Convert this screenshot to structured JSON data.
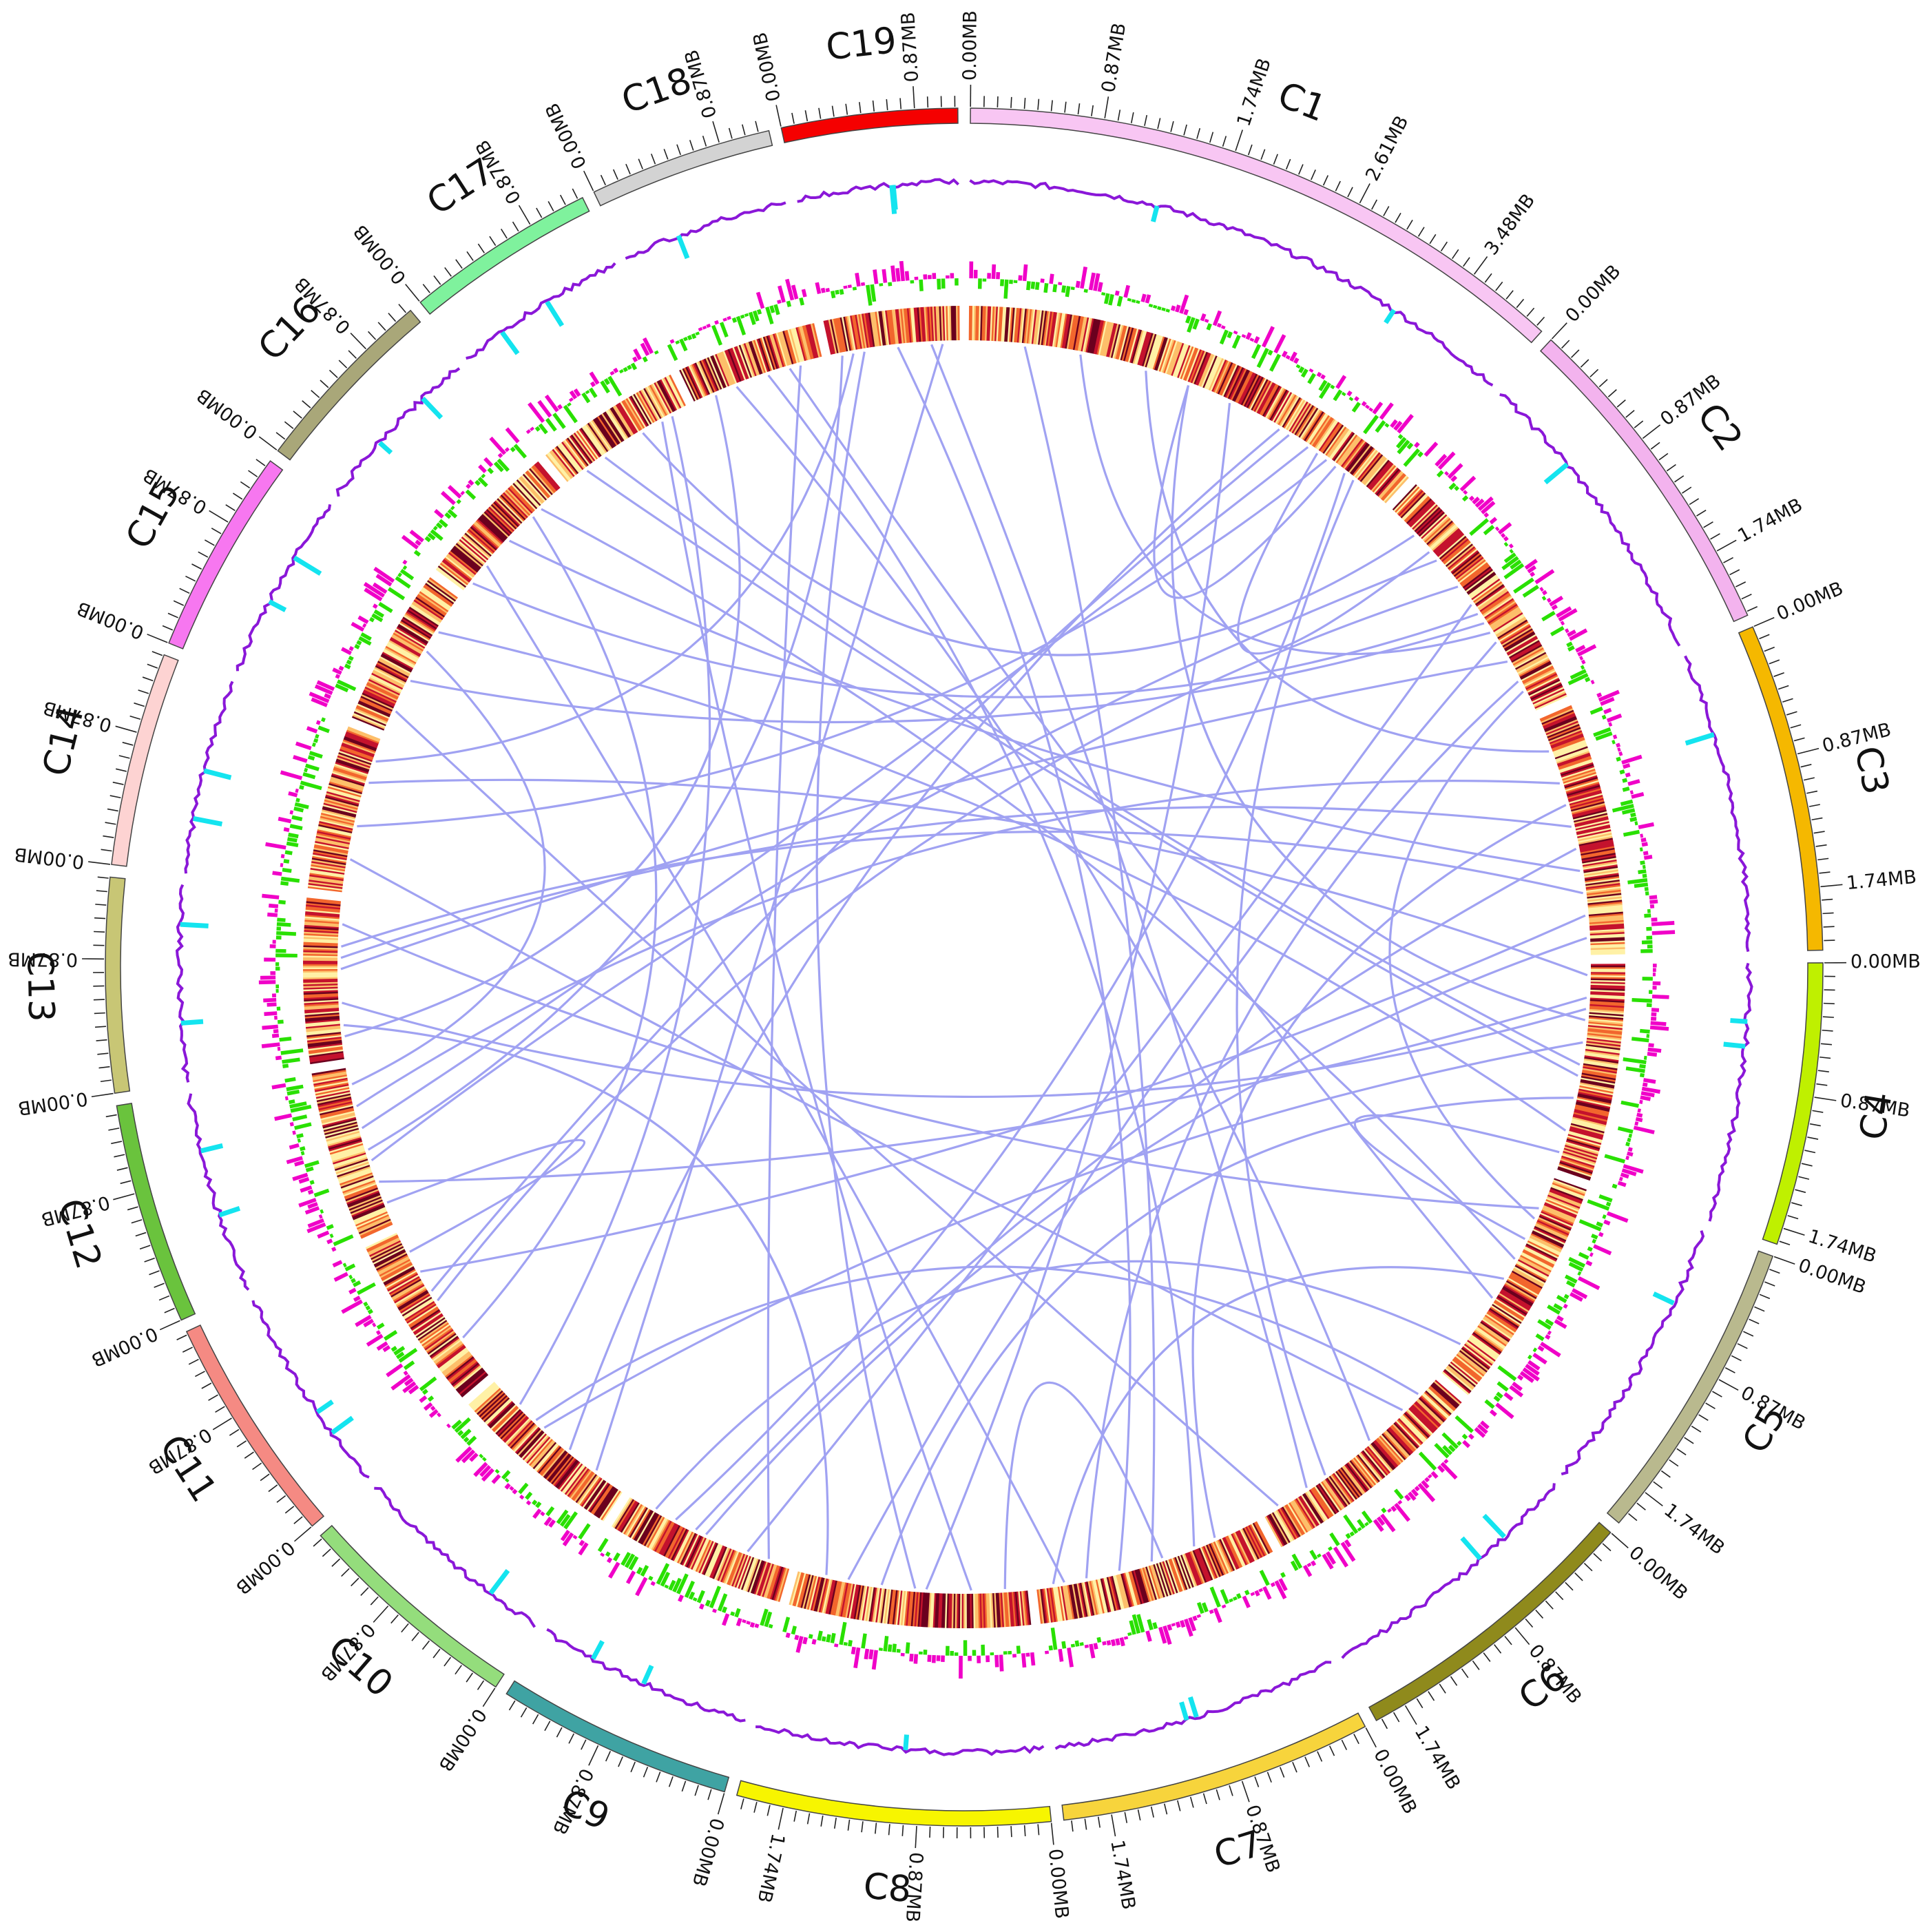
{
  "chart_data": {
    "type": "circos",
    "unit_label_format": "MB",
    "chromosomes": [
      {
        "name": "C1",
        "length_mb": 4.05,
        "color": "#f8c6f3",
        "tick_labels": [
          "0.00MB",
          "0.87MB",
          "1.74MB",
          "2.61MB",
          "3.48MB"
        ]
      },
      {
        "name": "C2",
        "length_mb": 2.2,
        "color": "#f3b3ee",
        "tick_labels": [
          "0.00MB",
          "0.87MB",
          "1.74MB"
        ]
      },
      {
        "name": "C3",
        "length_mb": 2.15,
        "color": "#f5b800",
        "tick_labels": [
          "0.00MB",
          "0.87MB",
          "1.74MB"
        ]
      },
      {
        "name": "C4",
        "length_mb": 1.85,
        "color": "#bff000",
        "tick_labels": [
          "0.00MB",
          "0.87MB",
          "1.74MB"
        ]
      },
      {
        "name": "C5",
        "length_mb": 2.0,
        "color": "#b9b98e",
        "tick_labels": [
          "0.00MB",
          "0.87MB",
          "1.74MB"
        ]
      },
      {
        "name": "C6",
        "length_mb": 1.95,
        "color": "#8f8a1c",
        "tick_labels": [
          "0.00MB",
          "0.87MB",
          "1.74MB"
        ]
      },
      {
        "name": "C7",
        "length_mb": 2.05,
        "color": "#f7d43c",
        "tick_labels": [
          "0.00MB",
          "0.87MB",
          "1.74MB"
        ]
      },
      {
        "name": "C8",
        "length_mb": 2.05,
        "color": "#f7f500",
        "tick_labels": [
          "0.00MB",
          "0.87MB",
          "1.74MB"
        ]
      },
      {
        "name": "C9",
        "length_mb": 1.55,
        "color": "#3fa3a3",
        "tick_labels": [
          "0.00MB",
          "0.87MB"
        ]
      },
      {
        "name": "C10",
        "length_mb": 1.5,
        "color": "#94dd7c",
        "tick_labels": [
          "0.00MB",
          "0.87MB"
        ]
      },
      {
        "name": "C11",
        "length_mb": 1.5,
        "color": "#f58a83",
        "tick_labels": [
          "0.00MB",
          "0.87MB"
        ]
      },
      {
        "name": "C12",
        "length_mb": 1.45,
        "color": "#6ac33d",
        "tick_labels": [
          "0.00MB",
          "0.87MB"
        ]
      },
      {
        "name": "C13",
        "length_mb": 1.4,
        "color": "#c8c675",
        "tick_labels": [
          "0.00MB",
          "0.87MB"
        ]
      },
      {
        "name": "C14",
        "length_mb": 1.4,
        "color": "#fdd3d2",
        "tick_labels": [
          "0.00MB",
          "0.87MB"
        ]
      },
      {
        "name": "C15",
        "length_mb": 1.35,
        "color": "#f777f0",
        "tick_labels": [
          "0.00MB",
          "0.87MB"
        ]
      },
      {
        "name": "C16",
        "length_mb": 1.25,
        "color": "#a9a779",
        "tick_labels": [
          "0.00MB",
          "0.87MB"
        ]
      },
      {
        "name": "C17",
        "length_mb": 1.25,
        "color": "#7ff29d",
        "tick_labels": [
          "0.00MB",
          "0.87MB"
        ]
      },
      {
        "name": "C18",
        "length_mb": 1.2,
        "color": "#d3d3d3",
        "tick_labels": [
          "0.00MB",
          "0.87MB"
        ]
      },
      {
        "name": "C19",
        "length_mb": 1.15,
        "color": "#f50000",
        "tick_labels": [
          "0.00MB",
          "0.87MB"
        ]
      }
    ],
    "tracks": [
      {
        "kind": "line-histogram",
        "colors": [
          "#8a17d8",
          "#14e4ef"
        ]
      },
      {
        "kind": "bar-histogram",
        "colors": [
          "#f000c8",
          "#29e000"
        ]
      },
      {
        "kind": "heatmap",
        "colors": [
          "#fff1a6",
          "#fdbf6a",
          "#f2662d",
          "#c4122d",
          "#6b001e"
        ]
      }
    ],
    "links": {
      "color": "#a0a2f2",
      "pairs": [
        [
          [
            "C1",
            1.0
          ],
          [
            "C2",
            1.4
          ]
        ],
        [
          [
            "C1",
            1.6
          ],
          [
            "C3",
            0.3
          ]
        ],
        [
          [
            "C1",
            2.0
          ],
          [
            "C4",
            0.5
          ]
        ],
        [
          [
            "C1",
            2.4
          ],
          [
            "C8",
            0.9
          ]
        ],
        [
          [
            "C1",
            2.9
          ],
          [
            "C10",
            0.6
          ]
        ],
        [
          [
            "C1",
            3.2
          ],
          [
            "C12",
            0.9
          ]
        ],
        [
          [
            "C1",
            3.4
          ],
          [
            "C14",
            0.6
          ]
        ],
        [
          [
            "C1",
            3.6
          ],
          [
            "C9",
            1.1
          ]
        ],
        [
          [
            "C1",
            3.7
          ],
          [
            "C6",
            1.3
          ]
        ],
        [
          [
            "C1",
            0.5
          ],
          [
            "C7",
            1.0
          ]
        ],
        [
          [
            "C1",
            3.3
          ],
          [
            "C2",
            0.5
          ]
        ],
        [
          [
            "C1",
            3.5
          ],
          [
            "C1",
            2.0
          ]
        ],
        [
          [
            "C2",
            0.6
          ],
          [
            "C12",
            0.6
          ]
        ],
        [
          [
            "C2",
            0.9
          ],
          [
            "C11",
            0.8
          ]
        ],
        [
          [
            "C2",
            1.1
          ],
          [
            "C9",
            0.4
          ]
        ],
        [
          [
            "C2",
            1.3
          ],
          [
            "C15",
            0.5
          ]
        ],
        [
          [
            "C2",
            1.7
          ],
          [
            "C13",
            0.8
          ]
        ],
        [
          [
            "C2",
            1.9
          ],
          [
            "C7",
            1.6
          ]
        ],
        [
          [
            "C2",
            0.3
          ],
          [
            "C17",
            0.8
          ]
        ],
        [
          [
            "C2",
            1.5
          ],
          [
            "C8",
            1.6
          ]
        ],
        [
          [
            "C2",
            2.0
          ],
          [
            "C5",
            0.4
          ]
        ],
        [
          [
            "C3",
            0.6
          ],
          [
            "C12",
            1.1
          ]
        ],
        [
          [
            "C3",
            1.0
          ],
          [
            "C13",
            0.9
          ]
        ],
        [
          [
            "C3",
            1.4
          ],
          [
            "C16",
            0.6
          ]
        ],
        [
          [
            "C3",
            1.8
          ],
          [
            "C11",
            1.1
          ]
        ],
        [
          [
            "C3",
            2.0
          ],
          [
            "C9",
            0.8
          ]
        ],
        [
          [
            "C3",
            0.8
          ],
          [
            "C7",
            0.4
          ]
        ],
        [
          [
            "C4",
            0.1
          ],
          [
            "C14",
            1.0
          ]
        ],
        [
          [
            "C4",
            0.3
          ],
          [
            "C12",
            0.4
          ]
        ],
        [
          [
            "C4",
            0.4
          ],
          [
            "C13",
            0.5
          ]
        ],
        [
          [
            "C4",
            0.7
          ],
          [
            "C10",
            0.9
          ]
        ],
        [
          [
            "C4",
            0.9
          ],
          [
            "C17",
            0.4
          ]
        ],
        [
          [
            "C4",
            1.2
          ],
          [
            "C8",
            1.3
          ]
        ],
        [
          [
            "C4",
            1.5
          ],
          [
            "C15",
            1.0
          ]
        ],
        [
          [
            "C4",
            1.7
          ],
          [
            "C5",
            0.6
          ]
        ],
        [
          [
            "C5",
            0.3
          ],
          [
            "C13",
            1.2
          ]
        ],
        [
          [
            "C5",
            0.8
          ],
          [
            "C16",
            1.0
          ]
        ],
        [
          [
            "C5",
            1.2
          ],
          [
            "C18",
            0.9
          ]
        ],
        [
          [
            "C5",
            1.7
          ],
          [
            "C9",
            1.3
          ]
        ],
        [
          [
            "C6",
            0.4
          ],
          [
            "C14",
            0.3
          ]
        ],
        [
          [
            "C6",
            0.8
          ],
          [
            "C18",
            0.4
          ]
        ],
        [
          [
            "C6",
            1.5
          ],
          [
            "C19",
            0.9
          ]
        ],
        [
          [
            "C6",
            1.8
          ],
          [
            "C15",
            0.2
          ]
        ],
        [
          [
            "C7",
            0.6
          ],
          [
            "C18",
            0.7
          ]
        ],
        [
          [
            "C7",
            1.3
          ],
          [
            "C19",
            0.6
          ]
        ],
        [
          [
            "C7",
            1.8
          ],
          [
            "C16",
            0.3
          ]
        ],
        [
          [
            "C7",
            0.9
          ],
          [
            "C8",
            0.2
          ]
        ],
        [
          [
            "C8",
            0.5
          ],
          [
            "C17",
            1.0
          ]
        ],
        [
          [
            "C8",
            1.0
          ],
          [
            "C19",
            0.3
          ]
        ],
        [
          [
            "C8",
            1.8
          ],
          [
            "C13",
            0.3
          ]
        ],
        [
          [
            "C9",
            0.2
          ],
          [
            "C18",
            1.0
          ]
        ],
        [
          [
            "C10",
            0.3
          ],
          [
            "C19",
            1.0
          ]
        ],
        [
          [
            "C10",
            1.2
          ],
          [
            "C17",
            1.1
          ]
        ],
        [
          [
            "C11",
            0.4
          ],
          [
            "C16",
            0.9
          ]
        ],
        [
          [
            "C11",
            1.3
          ],
          [
            "C12",
            0.2
          ]
        ],
        [
          [
            "C12",
            1.3
          ],
          [
            "C15",
            0.8
          ]
        ],
        [
          [
            "C13",
            0.2
          ],
          [
            "C18",
            0.2
          ]
        ],
        [
          [
            "C14",
            1.2
          ],
          [
            "C19",
            0.2
          ]
        ],
        [
          [
            "C9",
            0.9
          ],
          [
            "C3",
            1.2
          ]
        ],
        [
          [
            "C11",
            0.9
          ],
          [
            "C1",
            3.0
          ]
        ],
        [
          [
            "C12",
            0.7
          ],
          [
            "C19",
            0.1
          ]
        ],
        [
          [
            "C5",
            1.0
          ],
          [
            "C7",
            1.9
          ]
        ],
        [
          [
            "C6",
            0.2
          ],
          [
            "C10",
            1.0
          ]
        ],
        [
          [
            "C13",
            1.0
          ],
          [
            "C3",
            1.6
          ]
        ],
        [
          [
            "C16",
            0.1
          ],
          [
            "C2",
            1.2
          ]
        ],
        [
          [
            "C17",
            0.2
          ],
          [
            "C4",
            1.0
          ]
        ]
      ]
    }
  }
}
